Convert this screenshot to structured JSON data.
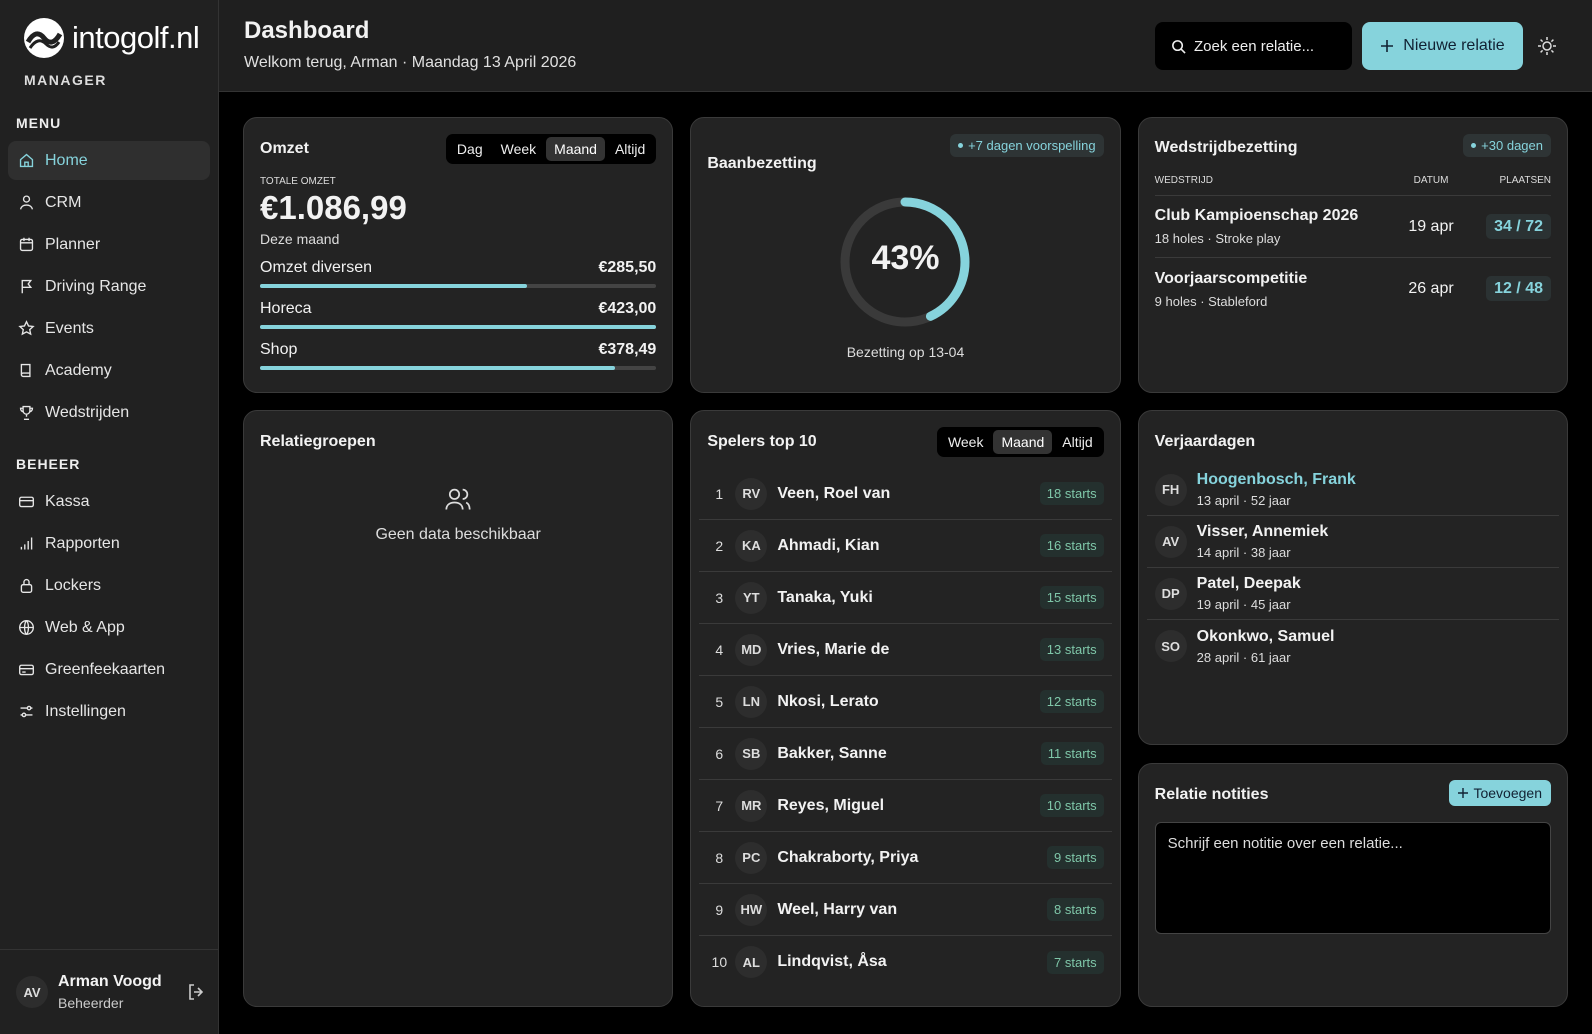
{
  "brand": {
    "name": "intogolf.nl",
    "role": "MANAGER"
  },
  "sidebar": {
    "sections": [
      {
        "title": "MENU",
        "items": [
          "Home",
          "CRM",
          "Planner",
          "Driving Range",
          "Events",
          "Academy",
          "Wedstrijden"
        ],
        "active": "Home"
      },
      {
        "title": "BEHEER",
        "items": [
          "Kassa",
          "Rapporten",
          "Lockers",
          "Web & App",
          "Greenfeekaarten",
          "Instellingen"
        ]
      }
    ],
    "user": {
      "initials": "AV",
      "name": "Arman Voogd",
      "role": "Beheerder"
    }
  },
  "header": {
    "title": "Dashboard",
    "subtitle": "Welkom terug, Arman · Maandag 13 April 2026",
    "search_placeholder": "Zoek een relatie...",
    "new_button": "Nieuwe relatie"
  },
  "omzet": {
    "title": "Omzet",
    "tabs": [
      "Dag",
      "Week",
      "Maand",
      "Altijd"
    ],
    "active_tab": "Maand",
    "total_label": "TOTALE OMZET",
    "total": "€1.086,99",
    "period": "Deze maand",
    "items": [
      {
        "label": "Omzet diversen",
        "amount": 285.5,
        "amount_label": "€285,50"
      },
      {
        "label": "Horeca",
        "amount": 423.0,
        "amount_label": "€423,00"
      },
      {
        "label": "Shop",
        "amount": 378.49,
        "amount_label": "€378,49"
      }
    ]
  },
  "baanbezetting": {
    "title": "Baanbezetting",
    "badge": "+7 dagen voorspelling",
    "occupancy": {
      "value": 43,
      "label": "43%"
    },
    "caption": "Bezetting op 13-04"
  },
  "wedstrijdbezetting": {
    "title": "Wedstrijdbezetting",
    "badge": "+30 dagen",
    "columns": [
      "WEDSTRIJD",
      "DATUM",
      "PLAATSEN"
    ],
    "rows": [
      {
        "name": "Club Kampioenschap 2026",
        "details": "18 holes · Stroke play",
        "date": "19 apr",
        "places": "34 / 72"
      },
      {
        "name": "Voorjaarscompetitie",
        "details": "9 holes · Stableford",
        "date": "26 apr",
        "places": "12 / 48"
      }
    ]
  },
  "relatiegroepen": {
    "title": "Relatiegroepen",
    "empty": "Geen data beschikbaar"
  },
  "spelers": {
    "title": "Spelers top 10",
    "tabs": [
      "Week",
      "Maand",
      "Altijd"
    ],
    "active_tab": "Maand",
    "players": [
      {
        "rank": 1,
        "initials": "RV",
        "name": "Veen, Roel van",
        "starts": "18 starts"
      },
      {
        "rank": 2,
        "initials": "KA",
        "name": "Ahmadi, Kian",
        "starts": "16 starts"
      },
      {
        "rank": 3,
        "initials": "YT",
        "name": "Tanaka, Yuki",
        "starts": "15 starts"
      },
      {
        "rank": 4,
        "initials": "MD",
        "name": "Vries, Marie de",
        "starts": "13 starts"
      },
      {
        "rank": 5,
        "initials": "LN",
        "name": "Nkosi, Lerato",
        "starts": "12 starts"
      },
      {
        "rank": 6,
        "initials": "SB",
        "name": "Bakker, Sanne",
        "starts": "11 starts"
      },
      {
        "rank": 7,
        "initials": "MR",
        "name": "Reyes, Miguel",
        "starts": "10 starts"
      },
      {
        "rank": 8,
        "initials": "PC",
        "name": "Chakraborty, Priya",
        "starts": "9 starts"
      },
      {
        "rank": 9,
        "initials": "HW",
        "name": "Weel, Harry van",
        "starts": "8 starts"
      },
      {
        "rank": 10,
        "initials": "AL",
        "name": "Lindqvist, Åsa",
        "starts": "7 starts"
      }
    ]
  },
  "verjaardagen": {
    "title": "Verjaardagen",
    "people": [
      {
        "initials": "FH",
        "name": "Hoogenbosch, Frank",
        "details": "13 april · 52 jaar"
      },
      {
        "initials": "AV",
        "name": "Visser, Annemiek",
        "details": "14 april · 38 jaar"
      },
      {
        "initials": "DP",
        "name": "Patel, Deepak",
        "details": "19 april · 45 jaar"
      },
      {
        "initials": "SO",
        "name": "Okonkwo, Samuel",
        "details": "28 april · 61 jaar"
      }
    ]
  },
  "notities": {
    "title": "Relatie notities",
    "button": "Toevoegen",
    "placeholder": "Schrijf een notitie over een relatie..."
  }
}
